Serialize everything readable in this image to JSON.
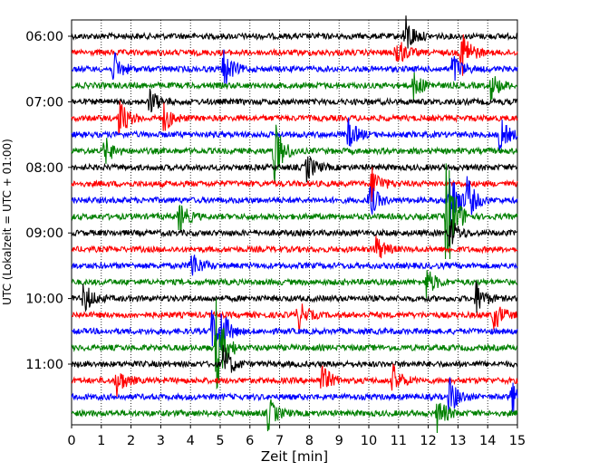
{
  "chart_data": {
    "type": "line",
    "title": "",
    "xlabel": "Zeit  [min]",
    "ylabel": "UTC (Lokalzeit = UTC + 01:00)",
    "xlim": [
      0,
      15
    ],
    "x_ticks": [
      "0",
      "1",
      "2",
      "3",
      "4",
      "5",
      "6",
      "7",
      "8",
      "9",
      "10",
      "11",
      "12",
      "13",
      "14",
      "15"
    ],
    "y_ticks": [
      "06:00",
      "07:00",
      "08:00",
      "09:00",
      "10:00",
      "11:00"
    ],
    "trace_interval_min": 15,
    "start_time": "06:00",
    "grid": "vertical dotted lines at each minute",
    "trace_colors": [
      "#000000",
      "#ff0000",
      "#0000ff",
      "#008000"
    ],
    "series": [
      {
        "start": "06:00",
        "color": "#000000",
        "events": [
          {
            "t": 11.2,
            "amp": 1.6
          }
        ]
      },
      {
        "start": "06:15",
        "color": "#ff0000",
        "events": [
          {
            "t": 10.9,
            "amp": 1.3
          },
          {
            "t": 13.1,
            "amp": 2.0
          }
        ]
      },
      {
        "start": "06:30",
        "color": "#0000ff",
        "events": [
          {
            "t": 1.4,
            "amp": 1.2
          },
          {
            "t": 5.1,
            "amp": 1.4
          },
          {
            "t": 12.8,
            "amp": 1.2
          }
        ]
      },
      {
        "start": "06:45",
        "color": "#008000",
        "events": [
          {
            "t": 11.5,
            "amp": 1.0
          },
          {
            "t": 14.1,
            "amp": 1.0
          }
        ]
      },
      {
        "start": "07:00",
        "color": "#000000",
        "events": [
          {
            "t": 2.6,
            "amp": 1.0
          }
        ]
      },
      {
        "start": "07:15",
        "color": "#ff0000",
        "events": [
          {
            "t": 1.6,
            "amp": 1.4
          },
          {
            "t": 3.1,
            "amp": 1.0
          }
        ]
      },
      {
        "start": "07:30",
        "color": "#0000ff",
        "events": [
          {
            "t": 9.3,
            "amp": 1.1
          },
          {
            "t": 14.4,
            "amp": 1.2
          }
        ]
      },
      {
        "start": "07:45",
        "color": "#008000",
        "events": [
          {
            "t": 6.8,
            "amp": 2.4
          },
          {
            "t": 1.1,
            "amp": 1.0
          }
        ]
      },
      {
        "start": "08:00",
        "color": "#000000",
        "events": [
          {
            "t": 7.9,
            "amp": 1.0
          }
        ]
      },
      {
        "start": "08:15",
        "color": "#ff0000",
        "events": [
          {
            "t": 10.1,
            "amp": 1.3
          }
        ]
      },
      {
        "start": "08:30",
        "color": "#0000ff",
        "events": [
          {
            "t": 10.0,
            "amp": 1.3
          },
          {
            "t": 12.7,
            "amp": 2.8
          },
          {
            "t": 13.3,
            "amp": 1.5
          }
        ]
      },
      {
        "start": "08:45",
        "color": "#008000",
        "events": [
          {
            "t": 12.6,
            "amp": 5.0
          },
          {
            "t": 3.6,
            "amp": 1.1
          }
        ]
      },
      {
        "start": "09:00",
        "color": "#000000",
        "events": [
          {
            "t": 12.7,
            "amp": 1.2
          }
        ]
      },
      {
        "start": "09:15",
        "color": "#ff0000",
        "events": [
          {
            "t": 10.2,
            "amp": 1.1
          }
        ]
      },
      {
        "start": "09:30",
        "color": "#0000ff",
        "events": [
          {
            "t": 4.0,
            "amp": 1.2
          }
        ]
      },
      {
        "start": "09:45",
        "color": "#008000",
        "events": [
          {
            "t": 11.9,
            "amp": 1.2
          }
        ]
      },
      {
        "start": "10:00",
        "color": "#000000",
        "events": [
          {
            "t": 0.4,
            "amp": 1.2
          },
          {
            "t": 13.6,
            "amp": 1.2
          }
        ]
      },
      {
        "start": "10:15",
        "color": "#ff0000",
        "events": [
          {
            "t": 7.6,
            "amp": 1.1
          },
          {
            "t": 14.2,
            "amp": 1.1
          }
        ]
      },
      {
        "start": "10:30",
        "color": "#0000ff",
        "events": [
          {
            "t": 4.7,
            "amp": 1.5
          },
          {
            "t": 5.0,
            "amp": 1.4
          }
        ]
      },
      {
        "start": "10:45",
        "color": "#008000",
        "events": [
          {
            "t": 4.85,
            "amp": 3.5
          }
        ]
      },
      {
        "start": "11:00",
        "color": "#000000",
        "events": [
          {
            "t": 5.1,
            "amp": 1.4
          }
        ]
      },
      {
        "start": "11:15",
        "color": "#ff0000",
        "events": [
          {
            "t": 1.5,
            "amp": 1.1
          },
          {
            "t": 8.4,
            "amp": 1.2
          },
          {
            "t": 10.8,
            "amp": 1.1
          }
        ]
      },
      {
        "start": "11:30",
        "color": "#0000ff",
        "events": [
          {
            "t": 12.7,
            "amp": 1.4
          },
          {
            "t": 14.8,
            "amp": 1.2
          }
        ]
      },
      {
        "start": "11:45",
        "color": "#008000",
        "events": [
          {
            "t": 6.6,
            "amp": 1.2
          },
          {
            "t": 12.3,
            "amp": 1.2
          }
        ]
      }
    ]
  }
}
